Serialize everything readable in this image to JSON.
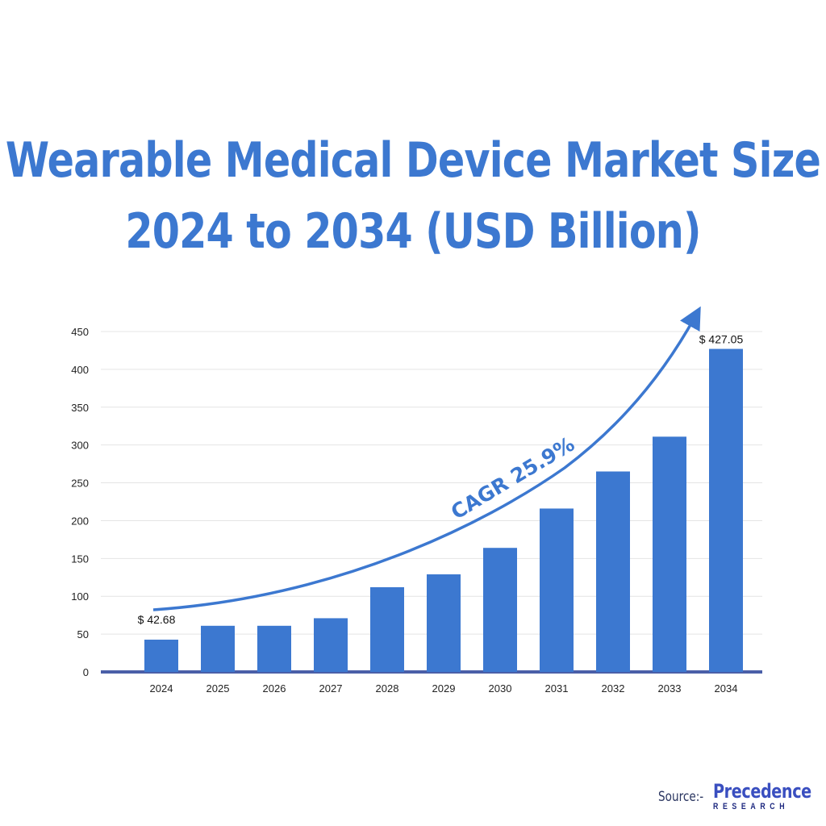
{
  "title_line1": "Wearable Medical Device Market Size",
  "title_line2": "2024 to 2034 (USD Billion)",
  "source_label": "Source:-",
  "logo": {
    "name": "Precedence",
    "sub": "RESEARCH"
  },
  "colors": {
    "bar": "#3c78d0",
    "title": "#3c78d0",
    "axis": "#4a5fa8"
  },
  "chart_data": {
    "type": "bar",
    "title": "Wearable Medical Device Market Size 2024 to 2034 (USD Billion)",
    "categories": [
      "2024",
      "2025",
      "2026",
      "2027",
      "2028",
      "2029",
      "2030",
      "2031",
      "2032",
      "2033",
      "2034"
    ],
    "values": [
      42.68,
      61,
      61,
      71,
      112,
      129,
      164,
      216,
      265,
      311,
      427.05
    ],
    "ylim": [
      0,
      450
    ],
    "yticks": [
      0,
      50,
      100,
      150,
      200,
      250,
      300,
      350,
      400,
      450
    ],
    "grid": true,
    "data_labels": [
      {
        "index": 0,
        "text": "$ 42.68"
      },
      {
        "index": 10,
        "text": "$ 427.05"
      }
    ],
    "annotation": "CAGR 25.9%"
  }
}
